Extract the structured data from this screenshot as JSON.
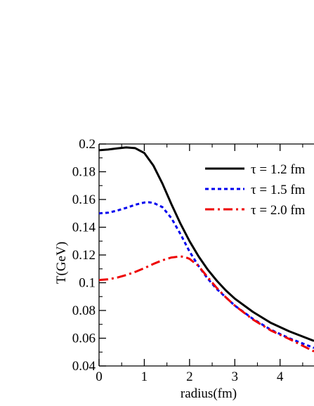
{
  "chart_data": {
    "type": "line",
    "xlabel": "radius(fm)",
    "ylabel": "T(GeV)",
    "xlim": [
      0,
      4.75
    ],
    "ylim": [
      0.04,
      0.2
    ],
    "x_ticks": [
      0,
      1,
      2,
      3,
      4
    ],
    "x_tick_labels": [
      "0",
      "1",
      "2",
      "3",
      "4"
    ],
    "y_ticks": [
      0.04,
      0.06,
      0.08,
      0.1,
      0.12,
      0.14,
      0.16,
      0.18,
      0.2
    ],
    "y_tick_labels": [
      "0.04",
      "0.06",
      "0.08",
      "0.1",
      "0.12",
      "0.14",
      "0.16",
      "0.18",
      "0.2"
    ],
    "grid": false,
    "legend_position": "top-right",
    "series": [
      {
        "name": "τ = 1.2 fm",
        "color": "#000000",
        "style": "solid",
        "x": [
          0,
          0.2,
          0.4,
          0.6,
          0.8,
          1.0,
          1.2,
          1.4,
          1.6,
          1.8,
          2.0,
          2.2,
          2.4,
          2.6,
          2.8,
          3.0,
          3.4,
          3.8,
          4.2,
          4.75
        ],
        "y": [
          0.1955,
          0.196,
          0.1968,
          0.1975,
          0.197,
          0.1935,
          0.1845,
          0.1715,
          0.1565,
          0.1425,
          0.13,
          0.119,
          0.1095,
          0.1015,
          0.0945,
          0.0885,
          0.079,
          0.071,
          0.065,
          0.058
        ]
      },
      {
        "name": "τ = 1.5 fm",
        "color": "#0000ee",
        "style": "dotted",
        "x": [
          0,
          0.2,
          0.4,
          0.6,
          0.8,
          1.0,
          1.1,
          1.2,
          1.4,
          1.6,
          1.8,
          2.0,
          2.2,
          2.4,
          2.6,
          2.8,
          3.0,
          3.4,
          3.8,
          4.2,
          4.75
        ],
        "y": [
          0.15,
          0.1505,
          0.152,
          0.154,
          0.1562,
          0.1578,
          0.158,
          0.1576,
          0.1545,
          0.1465,
          0.135,
          0.1225,
          0.112,
          0.103,
          0.0955,
          0.0895,
          0.0835,
          0.074,
          0.066,
          0.06,
          0.053
        ]
      },
      {
        "name": "τ = 2.0 fm",
        "color": "#ee0000",
        "style": "dashdot",
        "x": [
          0,
          0.2,
          0.4,
          0.6,
          0.8,
          1.0,
          1.2,
          1.4,
          1.6,
          1.8,
          1.9,
          2.0,
          2.2,
          2.4,
          2.6,
          2.8,
          3.0,
          3.4,
          3.8,
          4.2,
          4.75
        ],
        "y": [
          0.102,
          0.1025,
          0.1037,
          0.1055,
          0.1078,
          0.1105,
          0.1135,
          0.1162,
          0.1182,
          0.119,
          0.1185,
          0.1172,
          0.112,
          0.104,
          0.0963,
          0.0895,
          0.0835,
          0.0735,
          0.0655,
          0.0595,
          0.0505
        ]
      }
    ]
  }
}
